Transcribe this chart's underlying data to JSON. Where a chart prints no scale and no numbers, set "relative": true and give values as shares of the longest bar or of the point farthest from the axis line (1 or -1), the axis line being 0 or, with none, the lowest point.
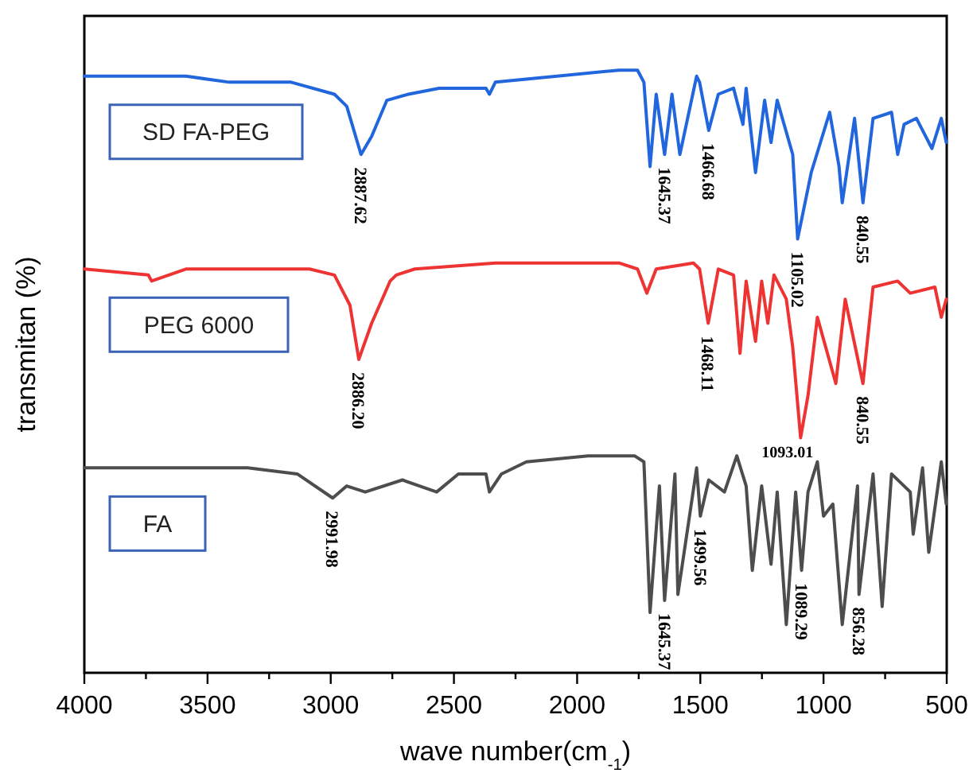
{
  "chart_data": {
    "type": "line",
    "relative": true,
    "xlabel": "wave number(cm$_{-1}$)",
    "ylabel": "transmitan (%)",
    "xlim": [
      4000,
      500
    ],
    "xticks": [
      4000,
      {
        "value": 3750,
        "label": null
      },
      3500,
      {
        "value": 3250,
        "label": null
      },
      3000,
      {
        "value": 2750,
        "label": null
      },
      2500,
      {
        "value": 2250,
        "label": null
      },
      2000,
      {
        "value": 1750,
        "label": null
      },
      1500,
      {
        "value": 1250,
        "label": null
      },
      1000,
      {
        "value": 750,
        "label": null
      },
      500
    ],
    "legend": "left",
    "grid": false,
    "marker": "none",
    "line_style": "solid",
    "series": [
      {
        "name": "SD FA-PEG",
        "color": "#2266dd",
        "x": [
          4000,
          3588,
          3412,
          3161,
          2985,
          2935,
          2877,
          2834,
          2772,
          2685,
          2560,
          2370,
          2356,
          2332,
          2081,
          1830,
          1755,
          1729,
          1704,
          1679,
          1645,
          1615,
          1583,
          1515,
          1503,
          1466,
          1427,
          1365,
          1327,
          1314,
          1276,
          1239,
          1213,
          1188,
          1125,
          1105,
          1050,
          975,
          937,
          924,
          874,
          840,
          799,
          724,
          699,
          673,
          623,
          560,
          522,
          502
        ],
        "values": [
          0.99,
          0.99,
          0.98,
          0.98,
          0.96,
          0.94,
          0.86,
          0.89,
          0.95,
          0.96,
          0.97,
          0.97,
          0.96,
          0.98,
          0.99,
          1.0,
          1.0,
          0.98,
          0.84,
          0.96,
          0.86,
          0.96,
          0.86,
          0.99,
          0.98,
          0.9,
          0.96,
          0.97,
          0.91,
          0.97,
          0.83,
          0.95,
          0.88,
          0.95,
          0.86,
          0.72,
          0.83,
          0.93,
          0.84,
          0.78,
          0.92,
          0.78,
          0.92,
          0.93,
          0.86,
          0.91,
          0.92,
          0.87,
          0.92,
          0.88
        ]
      },
      {
        "name": "PEG 6000",
        "color": "#ee3333",
        "x": [
          4000,
          3740,
          3727,
          3588,
          3337,
          3086,
          2985,
          2922,
          2886,
          2834,
          2759,
          2734,
          2659,
          2332,
          2081,
          1830,
          1755,
          1717,
          1679,
          1528,
          1503,
          1468,
          1427,
          1365,
          1339,
          1314,
          1276,
          1251,
          1226,
          1201,
          1151,
          1125,
          1093,
          1063,
          1025,
          950,
          912,
          840,
          799,
          699,
          648,
          548,
          522,
          502
        ],
        "values": [
          0.67,
          0.66,
          0.65,
          0.67,
          0.67,
          0.67,
          0.66,
          0.61,
          0.52,
          0.58,
          0.65,
          0.66,
          0.67,
          0.68,
          0.68,
          0.68,
          0.67,
          0.63,
          0.67,
          0.68,
          0.67,
          0.58,
          0.67,
          0.66,
          0.53,
          0.65,
          0.55,
          0.65,
          0.58,
          0.66,
          0.62,
          0.54,
          0.39,
          0.46,
          0.59,
          0.48,
          0.62,
          0.48,
          0.64,
          0.65,
          0.63,
          0.64,
          0.59,
          0.62
        ]
      },
      {
        "name": "FA",
        "color": "#4d4d4d",
        "x": [
          4000,
          3739,
          3588,
          3337,
          3136,
          2992,
          2935,
          2860,
          2709,
          2570,
          2482,
          2370,
          2356,
          2307,
          2206,
          1955,
          1767,
          1729,
          1704,
          1666,
          1645,
          1603,
          1591,
          1515,
          1500,
          1466,
          1402,
          1352,
          1314,
          1289,
          1251,
          1213,
          1188,
          1151,
          1113,
          1089,
          1063,
          1025,
          1000,
          962,
          924,
          862,
          856,
          799,
          762,
          724,
          648,
          636,
          598,
          573,
          522,
          502
        ],
        "values": [
          0.34,
          0.34,
          0.34,
          0.34,
          0.33,
          0.29,
          0.31,
          0.3,
          0.32,
          0.3,
          0.33,
          0.33,
          0.3,
          0.33,
          0.35,
          0.36,
          0.36,
          0.35,
          0.1,
          0.31,
          0.12,
          0.33,
          0.13,
          0.34,
          0.26,
          0.32,
          0.3,
          0.36,
          0.31,
          0.17,
          0.31,
          0.18,
          0.3,
          0.08,
          0.3,
          0.17,
          0.3,
          0.35,
          0.26,
          0.28,
          0.08,
          0.31,
          0.13,
          0.33,
          0.11,
          0.33,
          0.3,
          0.23,
          0.34,
          0.2,
          0.35,
          0.28
        ]
      }
    ],
    "annotations": [
      {
        "text": "2887.62",
        "x": 2877,
        "y": 0.86
      },
      {
        "text": "1645.37",
        "x": 1645,
        "y": 0.86
      },
      {
        "text": "1466.68",
        "x": 1466,
        "y": 0.9
      },
      {
        "text": "1105.02",
        "x": 1105,
        "y": 0.72
      },
      {
        "text": "840.55",
        "x": 840,
        "y": 0.78
      },
      {
        "text": "2886.20",
        "x": 2886,
        "y": 0.52
      },
      {
        "text": "1468.11",
        "x": 1468,
        "y": 0.58
      },
      {
        "text": "1093.01",
        "x": 1093,
        "y": 0.39
      },
      {
        "text": "840.55",
        "x": 840,
        "y": 0.48
      },
      {
        "text": "2991.98",
        "x": 2992,
        "y": 0.29
      },
      {
        "text": "1645.37",
        "x": 1645,
        "y": 0.12
      },
      {
        "text": "1499.56",
        "x": 1500,
        "y": 0.26
      },
      {
        "text": "1089.29",
        "x": 1089,
        "y": 0.17
      },
      {
        "text": "856.28",
        "x": 856,
        "y": 0.13
      }
    ]
  }
}
